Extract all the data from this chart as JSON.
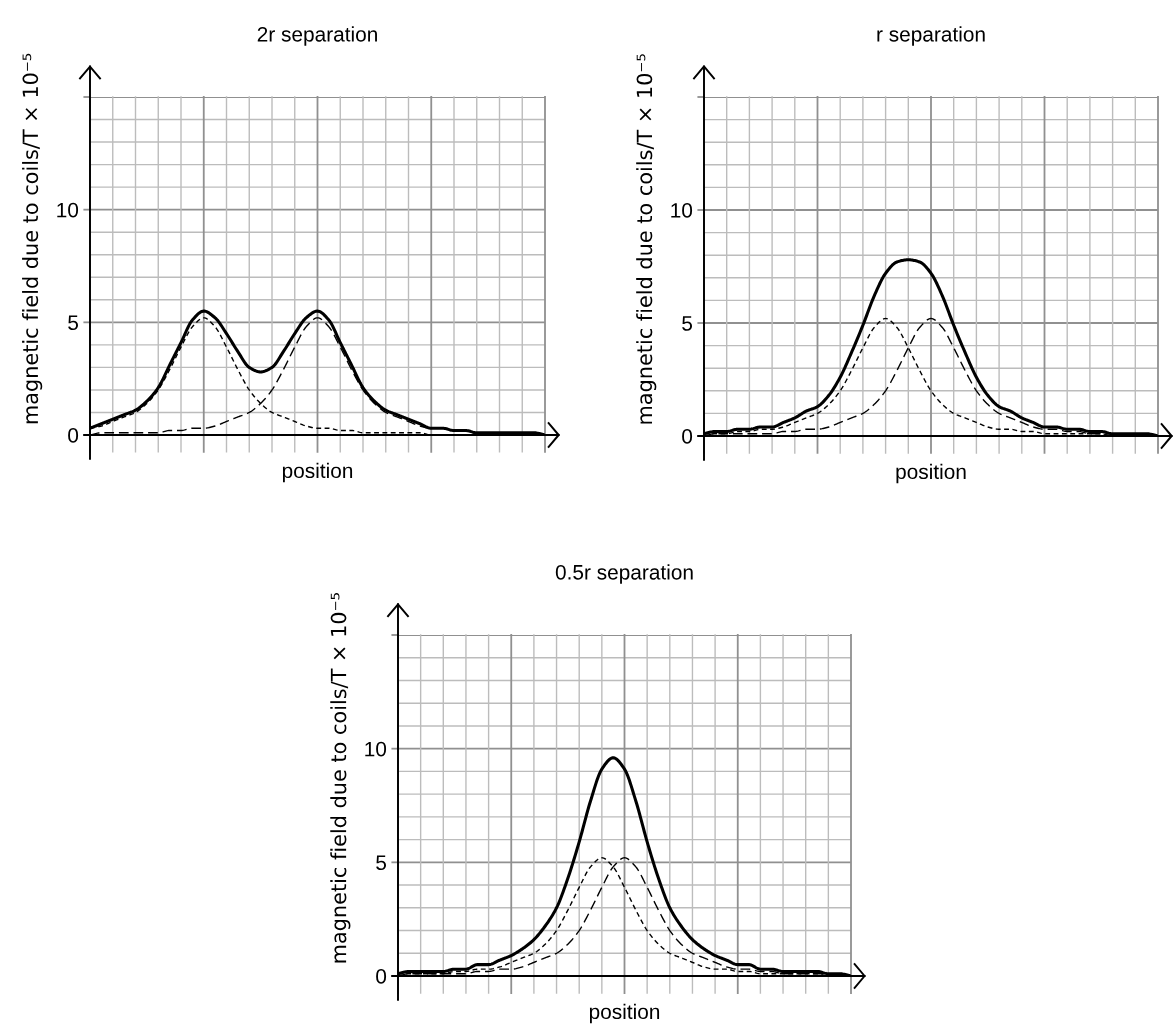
{
  "chart_data": [
    {
      "type": "line",
      "title": "2r separation",
      "xlabel": "position",
      "ylabel": "magnetic field due to coils/T × 10⁻⁵",
      "categories": [
        null,
        null,
        null,
        null,
        null,
        null,
        null,
        null,
        null,
        null,
        null,
        null,
        null,
        null,
        null,
        null,
        null,
        null,
        null,
        null,
        null,
        null,
        null,
        null,
        null,
        null,
        null,
        null,
        null,
        null,
        null,
        null,
        null,
        null,
        null,
        null,
        null,
        null,
        null,
        null,
        null
      ],
      "ylim": [
        0,
        15
      ],
      "yticks": [
        0,
        {
          "value": 1,
          "label": null
        },
        {
          "value": 2,
          "label": null
        },
        {
          "value": 3,
          "label": null
        },
        {
          "value": 4,
          "label": null
        },
        5,
        {
          "value": 6,
          "label": null
        },
        {
          "value": 7,
          "label": null
        },
        {
          "value": 8,
          "label": null
        },
        {
          "value": 9,
          "label": null
        },
        10,
        {
          "value": 11,
          "label": null
        },
        {
          "value": 12,
          "label": null
        },
        {
          "value": 13,
          "label": null
        },
        {
          "value": 14,
          "label": null
        },
        {
          "value": 15,
          "label": null
        }
      ],
      "grid": true,
      "tick_labels": "y",
      "series": [
        {
          "color": "#000000",
          "line_style": "solid",
          "values": [
            0.3,
            0.5,
            0.7,
            0.9,
            1.1,
            1.5,
            2.1,
            3.1,
            4.1,
            5.1,
            5.5,
            5.2,
            4.5,
            3.7,
            3.0,
            2.8,
            3.0,
            3.7,
            4.5,
            5.2,
            5.5,
            5.1,
            4.1,
            3.1,
            2.1,
            1.5,
            1.1,
            0.9,
            0.7,
            0.5,
            0.3,
            0.3,
            0.2,
            0.2,
            0.1,
            0.1,
            0.1,
            0.1,
            0.1,
            0.1,
            0
          ]
        },
        {
          "color": "#000000",
          "line_style": "dotted",
          "values": [
            0.3,
            0.4,
            0.6,
            0.8,
            1.0,
            1.4,
            2.0,
            2.9,
            3.9,
            4.8,
            5.2,
            4.8,
            3.9,
            2.9,
            2.0,
            1.4,
            1.0,
            0.8,
            0.6,
            0.4,
            0.3,
            0.3,
            0.2,
            0.2,
            0.1,
            0.1,
            0.1,
            0.1,
            0.1,
            0.1,
            0,
            0,
            0,
            0,
            0,
            0,
            0,
            0,
            0,
            0,
            0
          ]
        },
        {
          "color": "#000000",
          "line_style": "dashed",
          "values": [
            0,
            0.1,
            0.1,
            0.1,
            0.1,
            0.1,
            0.1,
            0.2,
            0.2,
            0.3,
            0.3,
            0.4,
            0.6,
            0.8,
            1.0,
            1.4,
            2.0,
            2.9,
            3.9,
            4.8,
            5.2,
            4.8,
            3.9,
            2.9,
            2.0,
            1.4,
            1.0,
            0.8,
            0.6,
            0.4,
            0.3,
            0.3,
            0.2,
            0.2,
            0.1,
            0.1,
            0.1,
            0.1,
            0.1,
            0.1,
            0
          ]
        }
      ]
    },
    {
      "type": "line",
      "title": "r separation",
      "xlabel": "position",
      "ylabel": "magnetic field due to coils/T × 10⁻⁵",
      "categories": [
        null,
        null,
        null,
        null,
        null,
        null,
        null,
        null,
        null,
        null,
        null,
        null,
        null,
        null,
        null,
        null,
        null,
        null,
        null,
        null,
        null,
        null,
        null,
        null,
        null,
        null,
        null,
        null,
        null,
        null,
        null,
        null,
        null,
        null,
        null,
        null,
        null,
        null,
        null,
        null,
        null
      ],
      "ylim": [
        0,
        15
      ],
      "yticks": [
        0,
        {
          "value": 1,
          "label": null
        },
        {
          "value": 2,
          "label": null
        },
        {
          "value": 3,
          "label": null
        },
        {
          "value": 4,
          "label": null
        },
        5,
        {
          "value": 6,
          "label": null
        },
        {
          "value": 7,
          "label": null
        },
        {
          "value": 8,
          "label": null
        },
        {
          "value": 9,
          "label": null
        },
        10,
        {
          "value": 11,
          "label": null
        },
        {
          "value": 12,
          "label": null
        },
        {
          "value": 13,
          "label": null
        },
        {
          "value": 14,
          "label": null
        },
        {
          "value": 15,
          "label": null
        }
      ],
      "grid": true,
      "tick_labels": "y",
      "series": [
        {
          "color": "#000000",
          "line_style": "solid",
          "values": [
            0.1,
            0.2,
            0.2,
            0.3,
            0.3,
            0.4,
            0.4,
            0.6,
            0.8,
            1.1,
            1.3,
            1.8,
            2.6,
            3.7,
            4.9,
            6.2,
            7.2,
            7.7,
            7.8,
            7.7,
            7.2,
            6.2,
            4.9,
            3.7,
            2.6,
            1.8,
            1.3,
            1.1,
            0.8,
            0.6,
            0.4,
            0.4,
            0.3,
            0.3,
            0.2,
            0.2,
            0.1,
            0.1,
            0.1,
            0.1,
            0
          ]
        },
        {
          "color": "#000000",
          "line_style": "dotted",
          "values": [
            0.1,
            0.1,
            0.1,
            0.2,
            0.2,
            0.3,
            0.3,
            0.4,
            0.6,
            0.8,
            1.0,
            1.4,
            2.0,
            2.9,
            3.9,
            4.8,
            5.2,
            4.8,
            3.9,
            2.9,
            2.0,
            1.4,
            1.0,
            0.8,
            0.6,
            0.4,
            0.3,
            0.3,
            0.2,
            0.2,
            0.1,
            0.1,
            0.1,
            0.1,
            0.1,
            0.1,
            0,
            0,
            0,
            0,
            0
          ]
        },
        {
          "color": "#000000",
          "line_style": "dashed",
          "values": [
            0,
            0.1,
            0.1,
            0.1,
            0.1,
            0.1,
            0.1,
            0.2,
            0.2,
            0.3,
            0.3,
            0.4,
            0.6,
            0.8,
            1.0,
            1.4,
            2.0,
            2.9,
            3.9,
            4.8,
            5.2,
            4.8,
            3.9,
            2.9,
            2.0,
            1.4,
            1.0,
            0.8,
            0.6,
            0.4,
            0.3,
            0.3,
            0.2,
            0.2,
            0.1,
            0.1,
            0.1,
            0.1,
            0.1,
            0.1,
            0
          ]
        }
      ]
    },
    {
      "type": "line",
      "title": "0.5r separation",
      "xlabel": "position",
      "ylabel": "magnetic field due to coils/T × 10⁻⁵",
      "categories": [
        null,
        null,
        null,
        null,
        null,
        null,
        null,
        null,
        null,
        null,
        null,
        null,
        null,
        null,
        null,
        null,
        null,
        null,
        null,
        null,
        null,
        null,
        null,
        null,
        null,
        null,
        null,
        null,
        null,
        null,
        null,
        null,
        null,
        null,
        null,
        null,
        null,
        null,
        null,
        null,
        null
      ],
      "ylim": [
        0,
        15
      ],
      "yticks": [
        0,
        {
          "value": 1,
          "label": null
        },
        {
          "value": 2,
          "label": null
        },
        {
          "value": 3,
          "label": null
        },
        {
          "value": 4,
          "label": null
        },
        5,
        {
          "value": 6,
          "label": null
        },
        {
          "value": 7,
          "label": null
        },
        {
          "value": 8,
          "label": null
        },
        {
          "value": 9,
          "label": null
        },
        10,
        {
          "value": 11,
          "label": null
        },
        {
          "value": 12,
          "label": null
        },
        {
          "value": 13,
          "label": null
        },
        {
          "value": 14,
          "label": null
        },
        {
          "value": 15,
          "label": null
        }
      ],
      "grid": true,
      "tick_labels": "y",
      "series": [
        {
          "color": "#000000",
          "line_style": "solid",
          "values": [
            0.1,
            0.2,
            0.2,
            0.2,
            0.2,
            0.3,
            0.3,
            0.5,
            0.5,
            0.7,
            0.9,
            1.2,
            1.6,
            2.2,
            3.0,
            4.3,
            5.9,
            7.7,
            9.1,
            9.6,
            9.1,
            7.7,
            5.9,
            4.3,
            3.0,
            2.2,
            1.6,
            1.2,
            0.9,
            0.7,
            0.5,
            0.5,
            0.3,
            0.3,
            0.2,
            0.2,
            0.2,
            0.2,
            0.1,
            0.1,
            0
          ]
        },
        {
          "color": "#000000",
          "line_style": "dotted",
          "values": [
            0.1,
            0.1,
            0.1,
            0.1,
            0.1,
            0.2,
            0.2,
            0.3,
            0.3,
            0.4,
            0.6,
            0.8,
            1.0,
            1.4,
            2.0,
            2.9,
            3.9,
            4.8,
            5.2,
            4.8,
            3.9,
            2.9,
            2.0,
            1.4,
            1.0,
            0.8,
            0.6,
            0.4,
            0.3,
            0.3,
            0.2,
            0.2,
            0.1,
            0.1,
            0.1,
            0.1,
            0.1,
            0.1,
            0,
            0,
            0
          ]
        },
        {
          "color": "#000000",
          "line_style": "dashed",
          "values": [
            0,
            0.1,
            0.1,
            0.1,
            0.1,
            0.1,
            0.1,
            0.2,
            0.2,
            0.3,
            0.3,
            0.4,
            0.6,
            0.8,
            1.0,
            1.4,
            2.0,
            2.9,
            3.9,
            4.8,
            5.2,
            4.8,
            3.9,
            2.9,
            2.0,
            1.4,
            1.0,
            0.8,
            0.6,
            0.4,
            0.3,
            0.3,
            0.2,
            0.2,
            0.1,
            0.1,
            0.1,
            0.1,
            0.1,
            0.1,
            0
          ]
        }
      ]
    }
  ]
}
